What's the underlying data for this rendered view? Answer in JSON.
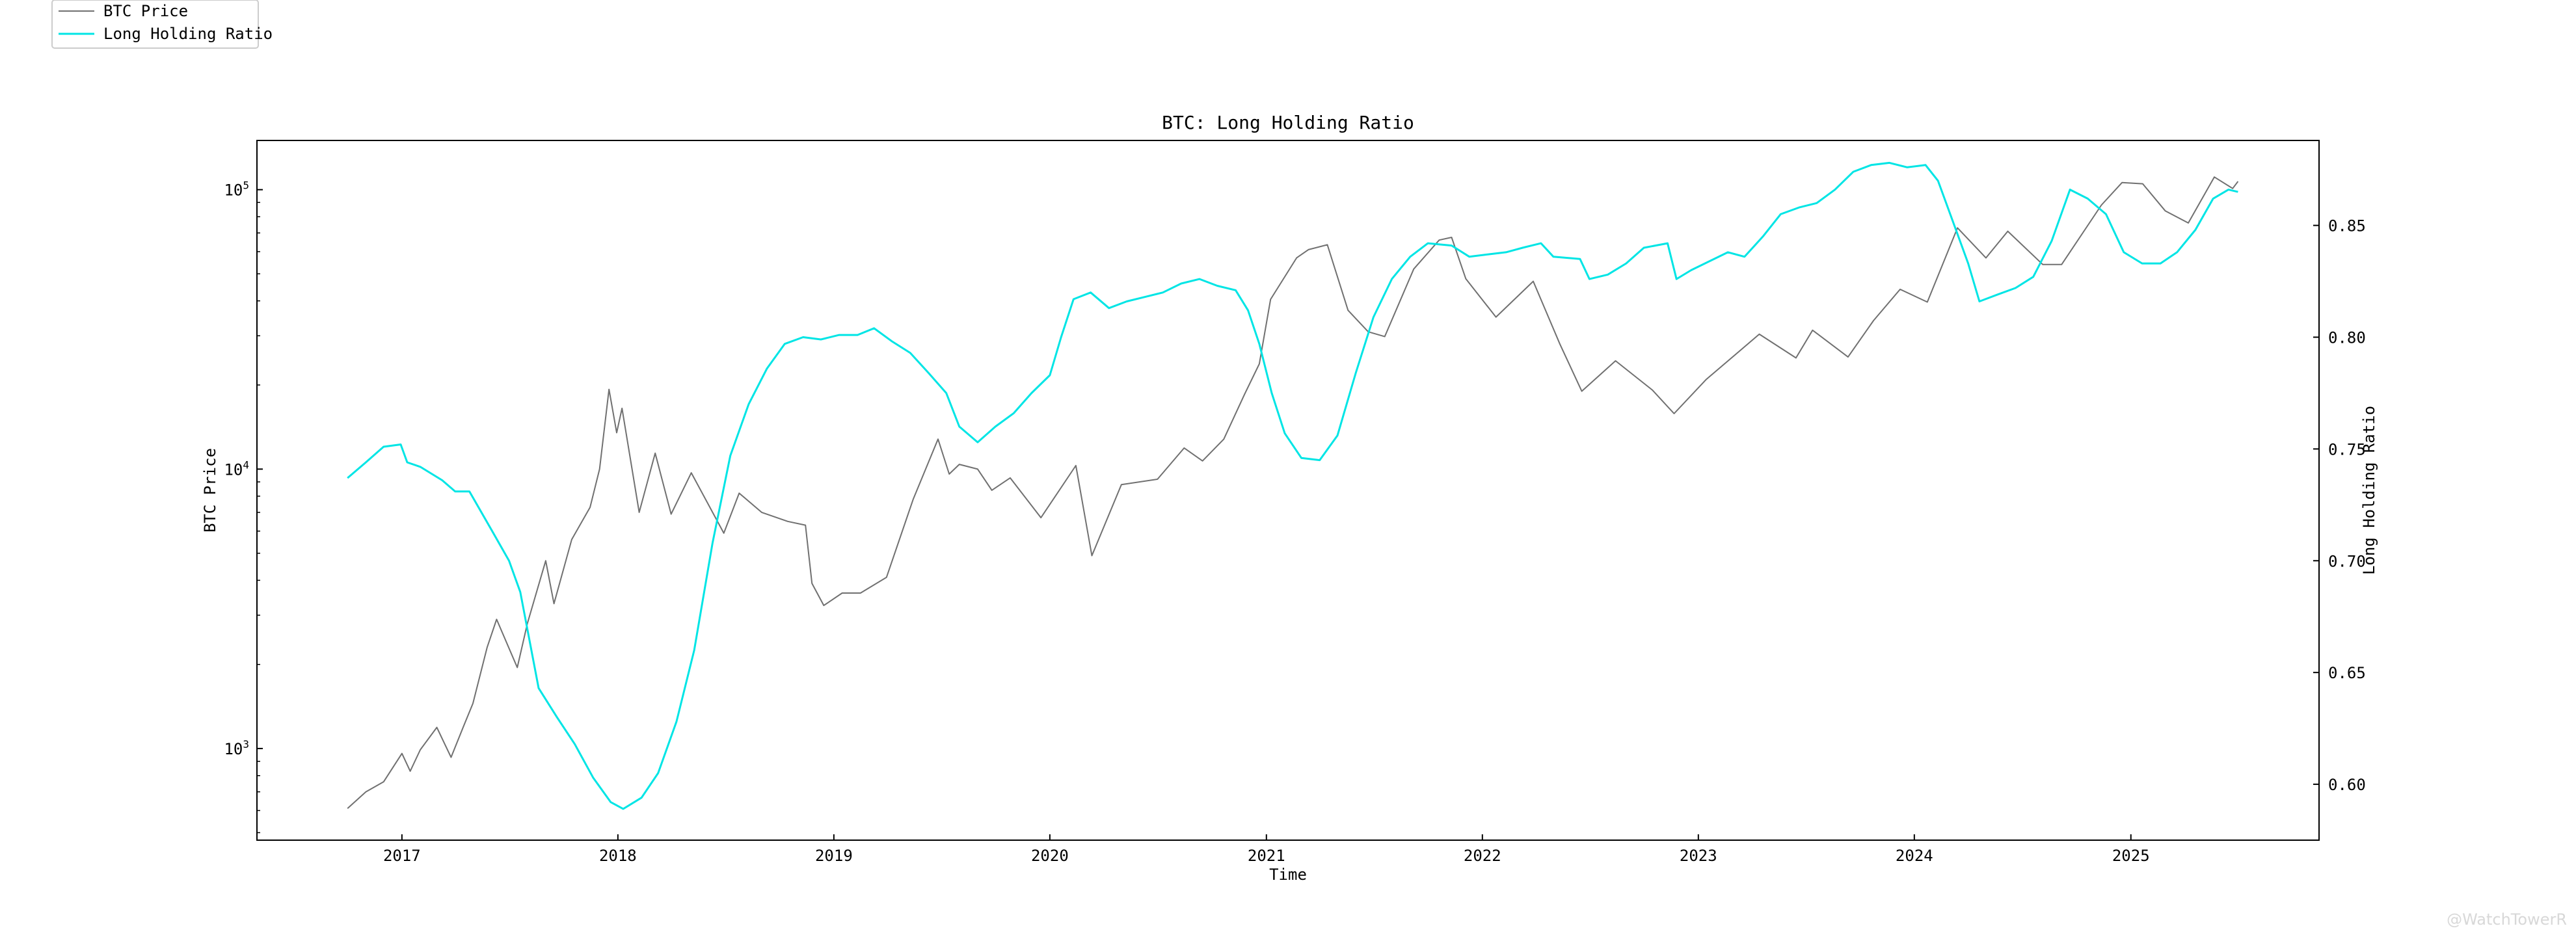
{
  "chart_data": {
    "type": "line",
    "title": "BTC: Long Holding Ratio",
    "xlabel": "Time",
    "ylabel": "BTC Price",
    "y2label": "Long Holding Ratio",
    "legend_position": "top-left (outside plot)",
    "grid": false,
    "x_ticks": [
      "2017",
      "2018",
      "2019",
      "2020",
      "2021",
      "2022",
      "2023",
      "2024",
      "2025"
    ],
    "y_scale": "log",
    "y_ticks": [
      {
        "value": 1000,
        "base": "10",
        "exp": "3"
      },
      {
        "value": 10000,
        "base": "10",
        "exp": "4"
      },
      {
        "value": 100000,
        "base": "10",
        "exp": "5"
      }
    ],
    "ylim": [
      470,
      150000
    ],
    "y2_ticks": [
      "0.60",
      "0.65",
      "0.70",
      "0.75",
      "0.80",
      "0.85"
    ],
    "y2lim": [
      0.575,
      0.888
    ],
    "xlim": [
      "2016-05-01",
      "2025-11-15"
    ],
    "series": [
      {
        "name": "BTC Price",
        "axis": "left",
        "color": "#707070",
        "points": [
          [
            "2016-10-01",
            610
          ],
          [
            "2016-11-01",
            700
          ],
          [
            "2016-12-01",
            760
          ],
          [
            "2017-01-01",
            960
          ],
          [
            "2017-01-15",
            830
          ],
          [
            "2017-02-01",
            990
          ],
          [
            "2017-03-01",
            1190
          ],
          [
            "2017-03-25",
            930
          ],
          [
            "2017-04-15",
            1200
          ],
          [
            "2017-05-01",
            1450
          ],
          [
            "2017-05-25",
            2300
          ],
          [
            "2017-06-10",
            2900
          ],
          [
            "2017-07-15",
            1950
          ],
          [
            "2017-08-01",
            2800
          ],
          [
            "2017-09-01",
            4700
          ],
          [
            "2017-09-15",
            3300
          ],
          [
            "2017-10-15",
            5600
          ],
          [
            "2017-11-15",
            7300
          ],
          [
            "2017-12-01",
            10000
          ],
          [
            "2017-12-17",
            19300
          ],
          [
            "2017-12-30",
            13500
          ],
          [
            "2018-01-08",
            16500
          ],
          [
            "2018-02-06",
            7000
          ],
          [
            "2018-03-05",
            11400
          ],
          [
            "2018-04-01",
            6900
          ],
          [
            "2018-05-05",
            9700
          ],
          [
            "2018-06-29",
            5900
          ],
          [
            "2018-07-25",
            8200
          ],
          [
            "2018-09-01",
            7000
          ],
          [
            "2018-10-15",
            6500
          ],
          [
            "2018-11-14",
            6300
          ],
          [
            "2018-11-25",
            3900
          ],
          [
            "2018-12-15",
            3250
          ],
          [
            "2019-01-15",
            3600
          ],
          [
            "2019-02-15",
            3600
          ],
          [
            "2019-03-31",
            4100
          ],
          [
            "2019-05-15",
            7800
          ],
          [
            "2019-06-26",
            12800
          ],
          [
            "2019-07-15",
            9600
          ],
          [
            "2019-08-01",
            10400
          ],
          [
            "2019-09-01",
            10000
          ],
          [
            "2019-09-25",
            8400
          ],
          [
            "2019-10-26",
            9300
          ],
          [
            "2019-12-17",
            6700
          ],
          [
            "2020-02-14",
            10300
          ],
          [
            "2020-03-12",
            4900
          ],
          [
            "2020-05-01",
            8800
          ],
          [
            "2020-07-01",
            9200
          ],
          [
            "2020-08-15",
            11900
          ],
          [
            "2020-09-15",
            10700
          ],
          [
            "2020-10-21",
            12800
          ],
          [
            "2020-11-25",
            18500
          ],
          [
            "2020-12-20",
            23800
          ],
          [
            "2021-01-08",
            40500
          ],
          [
            "2021-02-21",
            57000
          ],
          [
            "2021-03-13",
            61000
          ],
          [
            "2021-04-14",
            63500
          ],
          [
            "2021-05-19",
            37000
          ],
          [
            "2021-06-22",
            31000
          ],
          [
            "2021-07-20",
            29800
          ],
          [
            "2021-09-07",
            52000
          ],
          [
            "2021-10-20",
            66000
          ],
          [
            "2021-11-10",
            67500
          ],
          [
            "2021-12-04",
            48000
          ],
          [
            "2022-01-24",
            35000
          ],
          [
            "2022-03-28",
            47000
          ],
          [
            "2022-05-12",
            28000
          ],
          [
            "2022-06-18",
            19000
          ],
          [
            "2022-08-14",
            24400
          ],
          [
            "2022-10-15",
            19200
          ],
          [
            "2022-11-21",
            15800
          ],
          [
            "2023-01-14",
            20900
          ],
          [
            "2023-04-14",
            30400
          ],
          [
            "2023-06-15",
            25000
          ],
          [
            "2023-07-13",
            31400
          ],
          [
            "2023-09-11",
            25200
          ],
          [
            "2023-10-24",
            34000
          ],
          [
            "2023-12-08",
            44000
          ],
          [
            "2024-01-23",
            39600
          ],
          [
            "2024-03-14",
            73000
          ],
          [
            "2024-05-01",
            57000
          ],
          [
            "2024-06-07",
            71000
          ],
          [
            "2024-08-05",
            54000
          ],
          [
            "2024-09-06",
            54000
          ],
          [
            "2024-11-12",
            88000
          ],
          [
            "2024-12-17",
            106000
          ],
          [
            "2025-01-21",
            105000
          ],
          [
            "2025-02-28",
            84000
          ],
          [
            "2025-04-08",
            76000
          ],
          [
            "2025-05-22",
            111000
          ],
          [
            "2025-06-22",
            101000
          ],
          [
            "2025-07-01",
            107000
          ]
        ]
      },
      {
        "name": "Long Holding Ratio",
        "axis": "right",
        "color": "#00e5e5",
        "points": [
          [
            "2016-10-01",
            0.737
          ],
          [
            "2016-11-01",
            0.744
          ],
          [
            "2016-12-01",
            0.751
          ],
          [
            "2016-12-30",
            0.752
          ],
          [
            "2017-01-10",
            0.744
          ],
          [
            "2017-02-01",
            0.742
          ],
          [
            "2017-03-10",
            0.736
          ],
          [
            "2017-04-01",
            0.731
          ],
          [
            "2017-04-25",
            0.731
          ],
          [
            "2017-06-01",
            0.714
          ],
          [
            "2017-07-01",
            0.7
          ],
          [
            "2017-07-20",
            0.686
          ],
          [
            "2017-08-20",
            0.643
          ],
          [
            "2017-09-20",
            0.63
          ],
          [
            "2017-10-20",
            0.618
          ],
          [
            "2017-11-20",
            0.603
          ],
          [
            "2017-12-20",
            0.592
          ],
          [
            "2018-01-10",
            0.589
          ],
          [
            "2018-02-10",
            0.594
          ],
          [
            "2018-03-10",
            0.605
          ],
          [
            "2018-04-10",
            0.628
          ],
          [
            "2018-05-10",
            0.66
          ],
          [
            "2018-06-10",
            0.708
          ],
          [
            "2018-07-10",
            0.747
          ],
          [
            "2018-08-10",
            0.77
          ],
          [
            "2018-09-10",
            0.786
          ],
          [
            "2018-10-10",
            0.797
          ],
          [
            "2018-11-10",
            0.8
          ],
          [
            "2018-12-10",
            0.799
          ],
          [
            "2019-01-10",
            0.801
          ],
          [
            "2019-02-10",
            0.801
          ],
          [
            "2019-03-10",
            0.804
          ],
          [
            "2019-04-10",
            0.798
          ],
          [
            "2019-05-10",
            0.793
          ],
          [
            "2019-06-10",
            0.784
          ],
          [
            "2019-07-10",
            0.775
          ],
          [
            "2019-08-01",
            0.76
          ],
          [
            "2019-09-01",
            0.753
          ],
          [
            "2019-10-01",
            0.76
          ],
          [
            "2019-11-01",
            0.766
          ],
          [
            "2019-12-01",
            0.775
          ],
          [
            "2020-01-01",
            0.783
          ],
          [
            "2020-01-20",
            0.8
          ],
          [
            "2020-02-10",
            0.817
          ],
          [
            "2020-03-10",
            0.82
          ],
          [
            "2020-04-10",
            0.813
          ],
          [
            "2020-05-10",
            0.816
          ],
          [
            "2020-06-10",
            0.818
          ],
          [
            "2020-07-10",
            0.82
          ],
          [
            "2020-08-10",
            0.824
          ],
          [
            "2020-09-10",
            0.826
          ],
          [
            "2020-10-10",
            0.823
          ],
          [
            "2020-11-10",
            0.821
          ],
          [
            "2020-12-01",
            0.812
          ],
          [
            "2020-12-20",
            0.797
          ],
          [
            "2021-01-10",
            0.775
          ],
          [
            "2021-02-01",
            0.757
          ],
          [
            "2021-03-01",
            0.746
          ],
          [
            "2021-04-01",
            0.745
          ],
          [
            "2021-05-01",
            0.756
          ],
          [
            "2021-06-01",
            0.784
          ],
          [
            "2021-07-01",
            0.809
          ],
          [
            "2021-08-01",
            0.826
          ],
          [
            "2021-09-01",
            0.836
          ],
          [
            "2021-10-01",
            0.842
          ],
          [
            "2021-11-10",
            0.841
          ],
          [
            "2021-12-10",
            0.836
          ],
          [
            "2022-01-10",
            0.837
          ],
          [
            "2022-02-10",
            0.838
          ],
          [
            "2022-03-10",
            0.84
          ],
          [
            "2022-04-10",
            0.842
          ],
          [
            "2022-05-01",
            0.836
          ],
          [
            "2022-06-15",
            0.835
          ],
          [
            "2022-07-01",
            0.826
          ],
          [
            "2022-08-01",
            0.828
          ],
          [
            "2022-09-01",
            0.833
          ],
          [
            "2022-10-01",
            0.84
          ],
          [
            "2022-11-10",
            0.842
          ],
          [
            "2022-11-25",
            0.826
          ],
          [
            "2022-12-20",
            0.83
          ],
          [
            "2023-01-20",
            0.834
          ],
          [
            "2023-02-20",
            0.838
          ],
          [
            "2023-03-20",
            0.836
          ],
          [
            "2023-04-20",
            0.845
          ],
          [
            "2023-05-20",
            0.855
          ],
          [
            "2023-06-20",
            0.858
          ],
          [
            "2023-07-20",
            0.86
          ],
          [
            "2023-08-20",
            0.866
          ],
          [
            "2023-09-20",
            0.874
          ],
          [
            "2023-10-20",
            0.877
          ],
          [
            "2023-11-20",
            0.878
          ],
          [
            "2023-12-20",
            0.876
          ],
          [
            "2024-01-20",
            0.877
          ],
          [
            "2024-02-10",
            0.87
          ],
          [
            "2024-03-10",
            0.849
          ],
          [
            "2024-04-01",
            0.833
          ],
          [
            "2024-04-20",
            0.816
          ],
          [
            "2024-05-20",
            0.819
          ],
          [
            "2024-06-20",
            0.822
          ],
          [
            "2024-07-20",
            0.827
          ],
          [
            "2024-08-20",
            0.843
          ],
          [
            "2024-09-20",
            0.866
          ],
          [
            "2024-10-20",
            0.862
          ],
          [
            "2024-11-20",
            0.855
          ],
          [
            "2024-12-20",
            0.838
          ],
          [
            "2025-01-20",
            0.833
          ],
          [
            "2025-02-20",
            0.833
          ],
          [
            "2025-03-20",
            0.838
          ],
          [
            "2025-04-20",
            0.848
          ],
          [
            "2025-05-20",
            0.862
          ],
          [
            "2025-06-15",
            0.866
          ],
          [
            "2025-07-01",
            0.865
          ]
        ]
      }
    ]
  },
  "watermark": "@WatchTowerR"
}
